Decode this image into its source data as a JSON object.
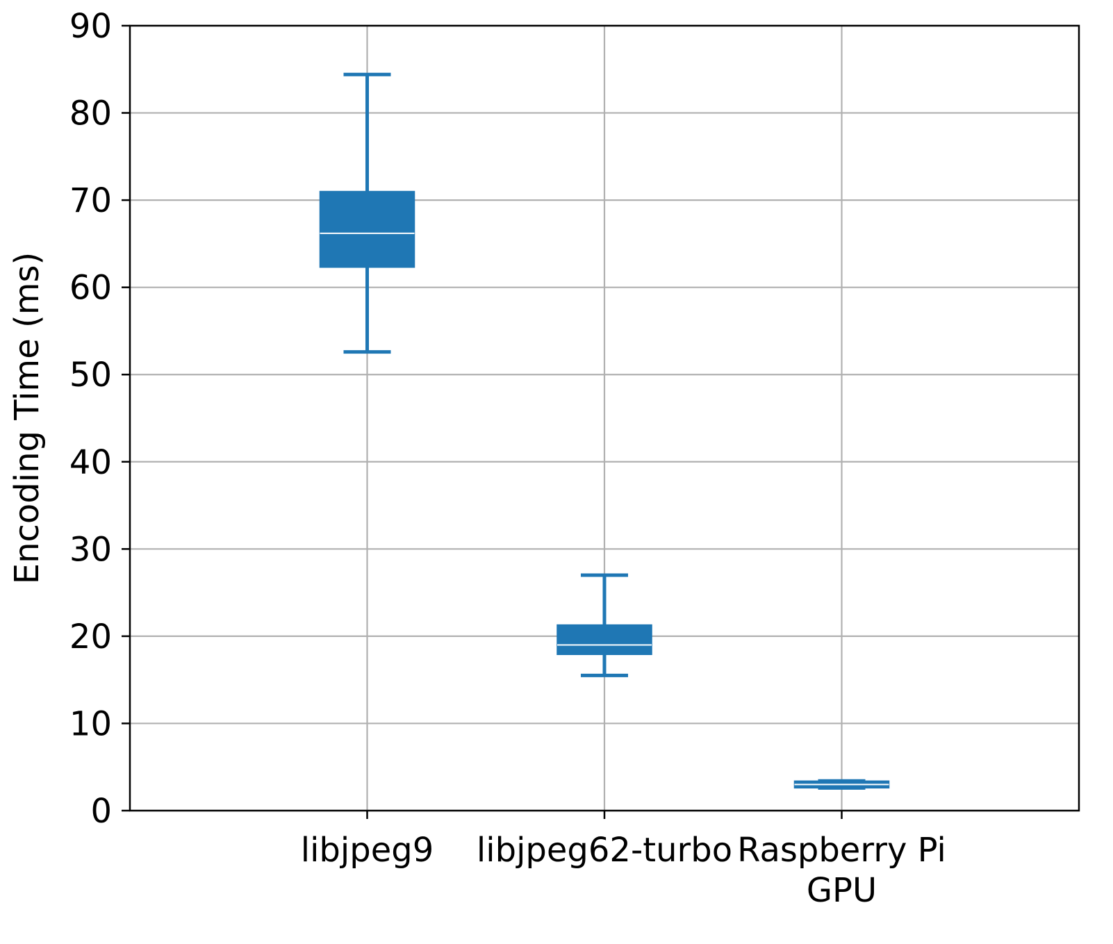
{
  "chart_data": {
    "type": "boxplot",
    "title": "",
    "xlabel": "",
    "ylabel": "Encoding Time (ms)",
    "ylim": [
      0,
      90
    ],
    "yticks": [
      "0",
      "10",
      "20",
      "30",
      "40",
      "50",
      "60",
      "70",
      "80",
      "90"
    ],
    "grid": true,
    "color": "#1f77b4",
    "median_color": "#ffffff",
    "categories": [
      [
        "libjpeg9"
      ],
      [
        "libjpeg62-turbo"
      ],
      [
        "Raspberry Pi",
        "GPU"
      ]
    ],
    "boxes": [
      {
        "whisker_low": 52.6,
        "q1": 62.3,
        "median": 66.2,
        "q3": 71.0,
        "whisker_high": 84.4
      },
      {
        "whisker_low": 15.5,
        "q1": 17.9,
        "median": 19.0,
        "q3": 21.3,
        "whisker_high": 27.0
      },
      {
        "whisker_low": 2.6,
        "q1": 2.6,
        "median": 3.0,
        "q3": 3.4,
        "whisker_high": 3.4
      }
    ]
  }
}
